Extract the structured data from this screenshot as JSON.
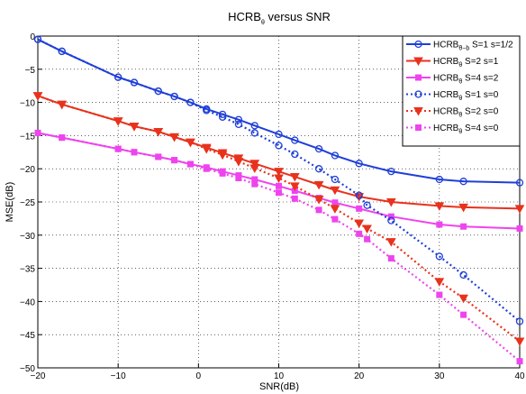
{
  "chart_data": {
    "type": "line",
    "title": "HCRBθ versus SNR",
    "title_main": "HCRB",
    "title_sub": "θ",
    "title_rest": " versus SNR",
    "xlabel": "SNR(dB)",
    "ylabel": "MSE(dB)",
    "xlim": [
      -20,
      40
    ],
    "ylim": [
      -50,
      0
    ],
    "xticks": [
      -20,
      -10,
      0,
      10,
      20,
      30,
      40
    ],
    "yticks": [
      0,
      -5,
      -10,
      -15,
      -20,
      -25,
      -30,
      -35,
      -40,
      -45,
      -50
    ],
    "grid": true,
    "legend_position": "top-right",
    "series": [
      {
        "name": "HCRBθ−b S=1 s=1/2",
        "legend_main": "HCRB",
        "legend_sub": "θ−b",
        "legend_rest": " S=1 s=1/2",
        "color": "#1f3fd8",
        "style": "solid",
        "marker": "circle",
        "x": [
          -20,
          -17,
          -10,
          -8,
          -5,
          -3,
          -1,
          1,
          3,
          5,
          7,
          10,
          12,
          15,
          17,
          20,
          24,
          30,
          33,
          40
        ],
        "y": [
          -0.5,
          -2.3,
          -6.2,
          -7.0,
          -8.3,
          -9.1,
          -10.0,
          -11.0,
          -11.8,
          -12.6,
          -13.5,
          -14.8,
          -15.7,
          -17.0,
          -18.0,
          -19.2,
          -20.4,
          -21.6,
          -21.9,
          -22.1
        ]
      },
      {
        "name": "HCRBθ S=2 s=1",
        "legend_main": "HCRB",
        "legend_sub": "θ",
        "legend_rest": " S=2 s=1",
        "color": "#e8321c",
        "style": "solid",
        "marker": "triangle-down",
        "x": [
          -20,
          -17,
          -10,
          -8,
          -5,
          -3,
          -1,
          1,
          3,
          5,
          7,
          10,
          12,
          15,
          17,
          20,
          24,
          30,
          33,
          40
        ],
        "y": [
          -9.0,
          -10.3,
          -12.8,
          -13.6,
          -14.4,
          -15.2,
          -16.0,
          -16.8,
          -17.6,
          -18.4,
          -19.2,
          -20.4,
          -21.2,
          -22.4,
          -23.2,
          -24.2,
          -25.0,
          -25.6,
          -25.8,
          -26.0
        ]
      },
      {
        "name": "HCRBθ S=4 s=2",
        "legend_main": "HCRB",
        "legend_sub": "θ",
        "legend_rest": " S=4 s=2",
        "color": "#ee44ee",
        "style": "solid",
        "marker": "square",
        "x": [
          -20,
          -17,
          -10,
          -8,
          -5,
          -3,
          -1,
          1,
          3,
          5,
          7,
          10,
          12,
          15,
          17,
          20,
          24,
          30,
          33,
          40
        ],
        "y": [
          -14.6,
          -15.3,
          -17.0,
          -17.5,
          -18.2,
          -18.7,
          -19.3,
          -19.8,
          -20.4,
          -21.0,
          -21.6,
          -22.6,
          -23.3,
          -24.4,
          -25.1,
          -26.0,
          -27.2,
          -28.4,
          -28.7,
          -29.0
        ]
      },
      {
        "name": "HCRBθ S=1 s=0",
        "legend_main": "HCRB",
        "legend_sub": "θ",
        "legend_rest": " S=1 s=0",
        "color": "#1f3fd8",
        "style": "dotted",
        "marker": "circle",
        "x": [
          -20,
          -17,
          -10,
          -8,
          -5,
          -3,
          -1,
          1,
          3,
          5,
          7,
          10,
          12,
          15,
          17,
          20,
          21,
          24,
          30,
          33,
          40
        ],
        "y": [
          -0.5,
          -2.3,
          -6.2,
          -7.0,
          -8.3,
          -9.1,
          -10.0,
          -11.2,
          -12.2,
          -13.3,
          -14.6,
          -16.5,
          -17.8,
          -20.0,
          -21.6,
          -24.0,
          -25.5,
          -27.8,
          -33.2,
          -36.0,
          -43.0
        ]
      },
      {
        "name": "HCRBθ S=2 s=0",
        "legend_main": "HCRB",
        "legend_sub": "θ",
        "legend_rest": " S=2 s=0",
        "color": "#e8321c",
        "style": "dotted",
        "marker": "triangle-down",
        "x": [
          -20,
          -17,
          -10,
          -8,
          -5,
          -3,
          -1,
          1,
          3,
          5,
          7,
          10,
          12,
          15,
          17,
          20,
          21,
          24,
          30,
          33,
          40
        ],
        "y": [
          -9.0,
          -10.3,
          -12.8,
          -13.6,
          -14.4,
          -15.2,
          -16.0,
          -17.0,
          -17.9,
          -18.9,
          -19.9,
          -21.4,
          -22.6,
          -24.6,
          -26.0,
          -28.2,
          -29.0,
          -31.0,
          -37.0,
          -39.5,
          -46.0
        ]
      },
      {
        "name": "HCRBθ S=4 s=0",
        "legend_main": "HCRB",
        "legend_sub": "θ",
        "legend_rest": " S=4 s=0",
        "color": "#ee44ee",
        "style": "dotted",
        "marker": "square",
        "x": [
          -20,
          -17,
          -10,
          -8,
          -5,
          -3,
          -1,
          1,
          3,
          5,
          7,
          10,
          12,
          15,
          17,
          20,
          21,
          24,
          30,
          33,
          40
        ],
        "y": [
          -14.6,
          -15.3,
          -17.0,
          -17.5,
          -18.2,
          -18.7,
          -19.3,
          -20.0,
          -20.7,
          -21.4,
          -22.3,
          -23.6,
          -24.5,
          -26.2,
          -27.6,
          -29.8,
          -30.6,
          -33.5,
          -39.0,
          -42.0,
          -49.0
        ]
      }
    ]
  }
}
